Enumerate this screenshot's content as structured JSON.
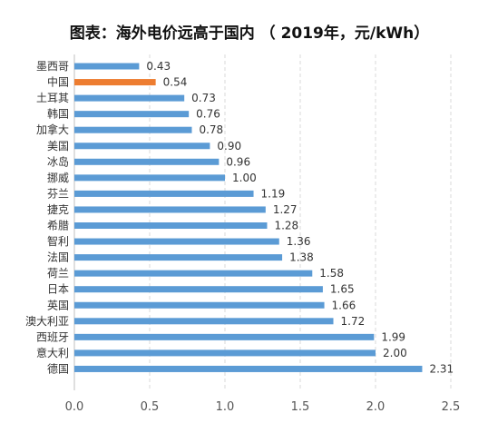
{
  "chart_data": {
    "type": "bar",
    "orientation": "horizontal",
    "title": "图表：海外电价远高于国内 （ 2019年，元/kWh）",
    "categories": [
      "墨西哥",
      "中国",
      "土耳其",
      "韩国",
      "加拿大",
      "美国",
      "冰岛",
      "挪威",
      "芬兰",
      "捷克",
      "希腊",
      "智利",
      "法国",
      "荷兰",
      "日本",
      "英国",
      "澳大利亚",
      "西班牙",
      "意大利",
      "德国"
    ],
    "values": [
      0.43,
      0.54,
      0.73,
      0.76,
      0.78,
      0.9,
      0.96,
      1.0,
      1.19,
      1.27,
      1.28,
      1.36,
      1.38,
      1.58,
      1.65,
      1.66,
      1.72,
      1.99,
      2.0,
      2.31
    ],
    "value_labels": [
      "0.43",
      "0.54",
      "0.73",
      "0.76",
      "0.78",
      "0.90",
      "0.96",
      "1.00",
      "1.19",
      "1.27",
      "1.28",
      "1.36",
      "1.38",
      "1.58",
      "1.65",
      "1.66",
      "1.72",
      "1.99",
      "2.00",
      "2.31"
    ],
    "x_ticks": [
      "0.0",
      "0.5",
      "1.0",
      "1.5",
      "2.0",
      "2.5"
    ],
    "xlim": [
      0,
      2.5
    ],
    "xlabel": "",
    "ylabel": "",
    "grid": "vertical dashed",
    "legend": "none",
    "highlight_index": 1,
    "colors": {
      "bar": "#5b9bd5",
      "highlight": "#ed7d31",
      "grid": "#d9d9d9"
    }
  }
}
